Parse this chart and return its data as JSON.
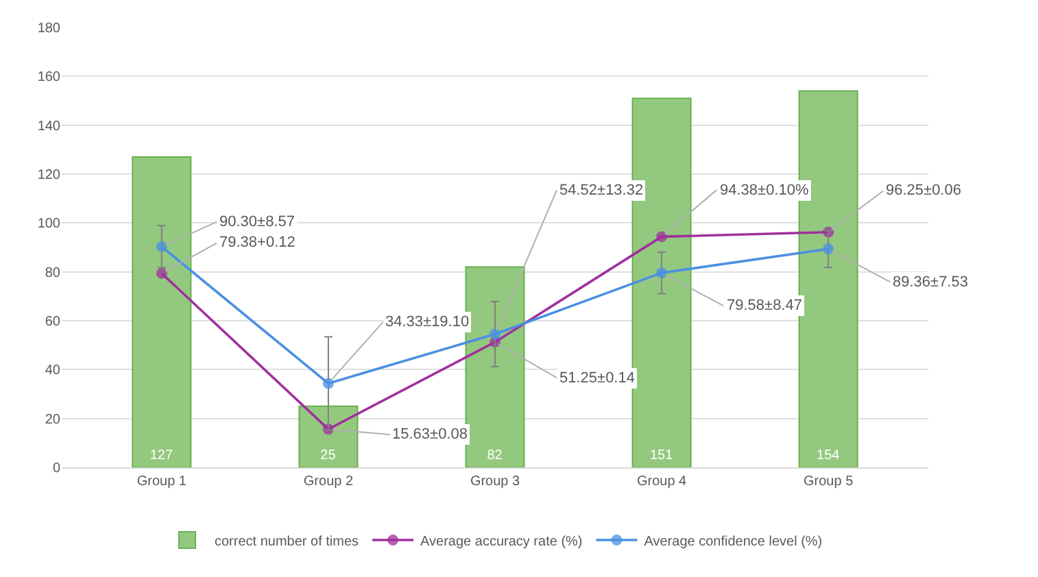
{
  "chart_data": {
    "type": "bar",
    "categories": [
      "Group 1",
      "Group 2",
      "Group 3",
      "Group 4",
      "Group 5"
    ],
    "series": [
      {
        "name": "correct number of times",
        "color": "#93c97f",
        "values": [
          127,
          25,
          82,
          151,
          154
        ],
        "data_labels": true
      },
      {
        "name": "Average accuracy rate (%)",
        "type": "line",
        "color": "#a0309e",
        "values": [
          79.38,
          15.63,
          51.25,
          94.38,
          96.25
        ],
        "value_labels": [
          "79.38+0.12",
          "15.63±0.08",
          "51.25±0.14",
          "94.38±0.10%",
          "96.25±0.06"
        ]
      },
      {
        "name": "Average confidence level (%)",
        "type": "line",
        "color": "#4a90e2",
        "values": [
          90.3,
          34.33,
          54.52,
          79.58,
          89.36
        ],
        "errors": [
          8.57,
          19.1,
          13.32,
          8.47,
          7.53
        ],
        "value_labels": [
          "90.30±8.57",
          "34.33±19.10",
          "54.52±13.32",
          "79.58±8.47",
          "89.36±7.53"
        ]
      }
    ],
    "ylim": [
      0,
      180
    ],
    "yticks": [
      0,
      20,
      40,
      60,
      80,
      100,
      120,
      140,
      160,
      180
    ],
    "grid": "y",
    "legend": "bottom",
    "marker": "circle",
    "line_style": "solid"
  }
}
